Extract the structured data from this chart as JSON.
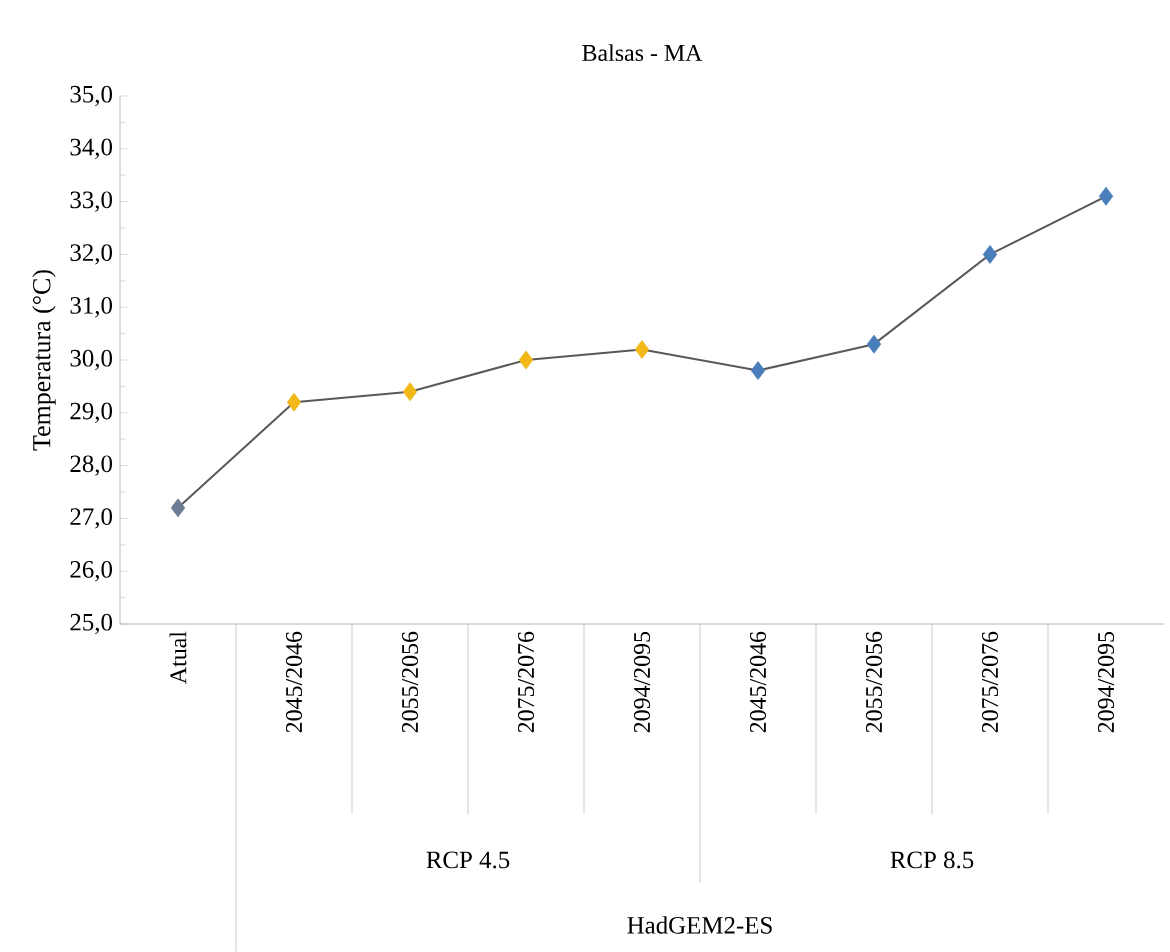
{
  "chart_data": {
    "type": "line",
    "title": "Balsas - MA",
    "ylabel": "Temperatura (°C)",
    "categories": [
      "Atual",
      "2045/2046",
      "2055/2056",
      "2075/2076",
      "2094/2095",
      "2045/2046",
      "2055/2056",
      "2075/2076",
      "2094/2095"
    ],
    "values": [
      27.2,
      29.2,
      29.4,
      30.0,
      30.2,
      29.8,
      30.3,
      32.0,
      33.1
    ],
    "color": "#595959",
    "colors": [
      "#6e7b95",
      "#f2b81a",
      "#f2b81a",
      "#f2b81a",
      "#f2b81a",
      "#4a7ebb",
      "#4a7ebb",
      "#4a7ebb",
      "#4a7ebb"
    ],
    "marker": "diamond",
    "line_style": "solid",
    "grid": false,
    "ylim": [
      25,
      35
    ],
    "yticks": [
      {
        "value": 25,
        "label": "25,0"
      },
      {
        "value": 26,
        "label": "26,0"
      },
      {
        "value": 27,
        "label": "27,0"
      },
      {
        "value": 28,
        "label": "28,0"
      },
      {
        "value": 29,
        "label": "29,0"
      },
      {
        "value": 30,
        "label": "30,0"
      },
      {
        "value": 31,
        "label": "31,0"
      },
      {
        "value": 32,
        "label": "32,0"
      },
      {
        "value": 33,
        "label": "33,0"
      },
      {
        "value": 34,
        "label": "34,0"
      },
      {
        "value": 35,
        "label": "35,0"
      }
    ],
    "annotations": [
      "RCP 4.5",
      "RCP 8.5",
      "HadGEM2-ES"
    ]
  }
}
